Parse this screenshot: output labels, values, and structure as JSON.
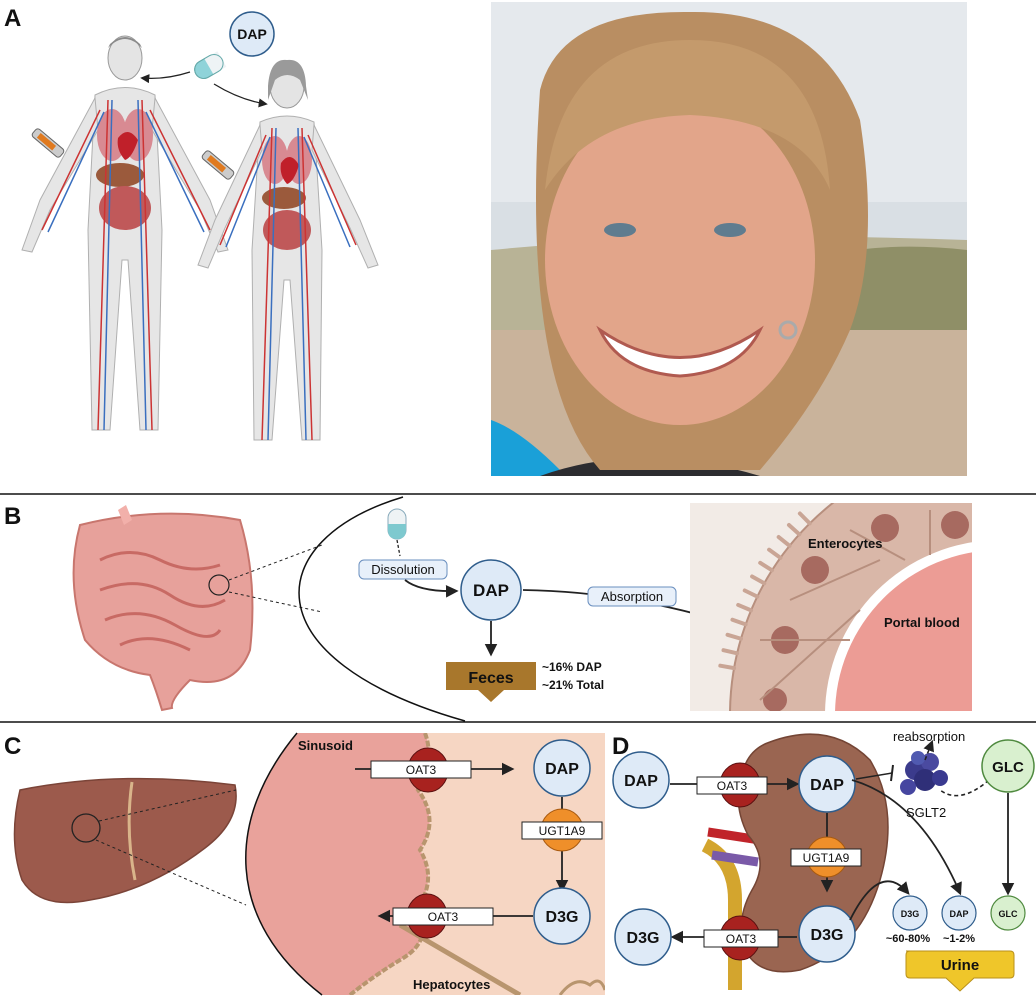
{
  "panels": {
    "a": "A",
    "b": "B",
    "c": "C",
    "d": "D"
  },
  "panel_a": {
    "drug_badge": "DAP"
  },
  "panel_b": {
    "dissolution": "Dissolution",
    "dap": "DAP",
    "absorption": "Absorption",
    "feces": "Feces",
    "feces_dap": "~16% DAP",
    "feces_total": "~21% Total",
    "enterocytes": "Enterocytes",
    "portal_blood": "Portal blood"
  },
  "panel_c": {
    "sinusoid": "Sinusoid",
    "hepatocytes": "Hepatocytes",
    "oat3_in": "OAT3",
    "oat3_out": "OAT3",
    "dap": "DAP",
    "ugt": "UGT1A9",
    "d3g": "D3G"
  },
  "panel_d": {
    "dap_blood": "DAP",
    "oat3_in": "OAT3",
    "dap_cell": "DAP",
    "reabsorption": "reabsorption",
    "glc_blood": "GLC",
    "sglt2": "SGLT2",
    "ugt": "UGT1A9",
    "d3g_cell": "D3G",
    "d3g_blood": "D3G",
    "oat3_out": "OAT3",
    "urine_d3g": "D3G",
    "urine_dap": "DAP",
    "urine_glc": "GLC",
    "pct_d3g": "~60-80%",
    "pct_dap": "~1-2%",
    "urine": "Urine"
  },
  "colors": {
    "node_fill": "#deeaf7",
    "node_stroke": "#2f5d8c",
    "transporter": "#a8221f",
    "enzyme": "#ef8f2a",
    "glc_fill": "#d9f0cf",
    "liver": "#9c5a4c",
    "sinusoid": "#e9a29b",
    "hepatocyte_bg": "#f6d6c3",
    "feces": "#a8772c",
    "urine": "#efc62a",
    "portal": "#ec9c95"
  }
}
